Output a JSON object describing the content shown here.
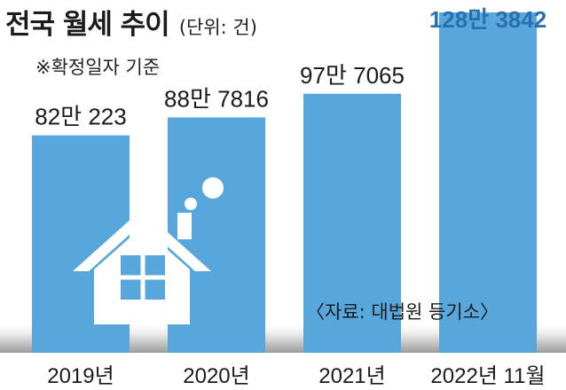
{
  "header": {
    "title": "전국 월세 추이",
    "unit": "(단위: 건)",
    "subtitle": "※확정일자 기준"
  },
  "source": "〈자료: 대법원 등기소〉",
  "colors": {
    "bar": "#58a7dc",
    "house": "#ffffff",
    "window": "#58a7dc",
    "highlight_label": "#2a6fb0",
    "text": "#1b1b1b"
  },
  "chart_data": {
    "type": "bar",
    "title": "전국 월세 추이",
    "ylabel": "",
    "unit": "건",
    "categories": [
      "2019년",
      "2020년",
      "2021년",
      "2022년 11월"
    ],
    "values": [
      820223,
      887816,
      977065,
      1283842
    ],
    "value_labels": [
      "82만 223",
      "88만 7816",
      "97만 7065",
      "128만 3842"
    ],
    "highlight_index": 3,
    "grid": false,
    "legend": "none"
  }
}
